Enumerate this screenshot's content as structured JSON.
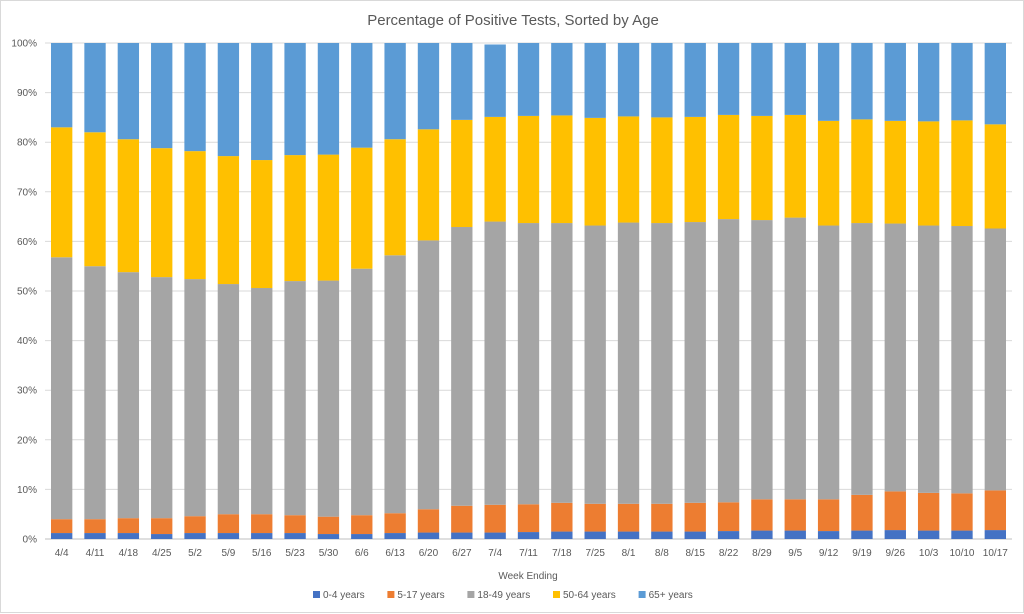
{
  "chart_data": {
    "type": "bar",
    "stacked": true,
    "percent_stacked": true,
    "title": "Percentage of Positive Tests, Sorted by Age",
    "xlabel": "Week Ending",
    "ylabel": "",
    "ylim": [
      0,
      100
    ],
    "y_ticks": [
      "0%",
      "10%",
      "20%",
      "30%",
      "40%",
      "50%",
      "60%",
      "70%",
      "80%",
      "90%",
      "100%"
    ],
    "grid": true,
    "legend_position": "bottom",
    "categories": [
      "4/4",
      "4/11",
      "4/18",
      "4/25",
      "5/2",
      "5/9",
      "5/16",
      "5/23",
      "5/30",
      "6/6",
      "6/13",
      "6/20",
      "6/27",
      "7/4",
      "7/11",
      "7/18",
      "7/25",
      "8/1",
      "8/8",
      "8/15",
      "8/22",
      "8/29",
      "9/5",
      "9/12",
      "9/19",
      "9/26",
      "10/3",
      "10/10",
      "10/17"
    ],
    "series": [
      {
        "name": "0-4 years",
        "color": "#4472c4",
        "values": [
          1.2,
          1.2,
          1.2,
          1.0,
          1.2,
          1.2,
          1.2,
          1.2,
          1.0,
          1.0,
          1.2,
          1.3,
          1.3,
          1.3,
          1.4,
          1.5,
          1.5,
          1.5,
          1.5,
          1.5,
          1.6,
          1.7,
          1.7,
          1.6,
          1.7,
          1.8,
          1.7,
          1.7,
          1.8
        ]
      },
      {
        "name": "5-17 years",
        "color": "#ed7d31",
        "values": [
          2.8,
          2.8,
          3.0,
          3.2,
          3.4,
          3.8,
          3.8,
          3.6,
          3.5,
          3.8,
          4.0,
          4.7,
          5.4,
          5.6,
          5.6,
          5.8,
          5.6,
          5.6,
          5.6,
          5.8,
          5.8,
          6.3,
          6.3,
          6.4,
          7.2,
          7.8,
          7.6,
          7.5,
          8.0
        ]
      },
      {
        "name": "18-49 years",
        "color": "#a5a5a5",
        "values": [
          52.8,
          51.0,
          49.6,
          48.6,
          47.8,
          46.4,
          45.6,
          47.2,
          47.6,
          49.7,
          52.0,
          54.2,
          56.2,
          57.1,
          56.7,
          56.4,
          56.1,
          56.7,
          56.6,
          56.6,
          57.1,
          56.3,
          56.8,
          55.2,
          54.8,
          54.0,
          53.9,
          53.9,
          52.8
        ]
      },
      {
        "name": "50-64 years",
        "color": "#ffc000",
        "values": [
          26.2,
          27.0,
          26.8,
          26.0,
          25.8,
          25.8,
          25.8,
          25.4,
          25.4,
          24.4,
          23.4,
          22.4,
          21.6,
          21.1,
          21.6,
          21.7,
          21.7,
          21.4,
          21.3,
          21.2,
          21.0,
          21.0,
          20.7,
          21.1,
          20.9,
          20.7,
          21.0,
          21.3,
          21.0
        ]
      },
      {
        "name": "65+ years",
        "color": "#5b9bd5",
        "values": [
          17.0,
          18.0,
          19.4,
          21.2,
          21.8,
          22.8,
          23.6,
          22.6,
          22.5,
          21.1,
          19.4,
          17.4,
          15.5,
          14.6,
          14.7,
          14.6,
          15.1,
          14.8,
          15.0,
          14.9,
          14.5,
          14.7,
          14.5,
          15.7,
          15.4,
          15.7,
          15.8,
          15.6,
          16.4
        ]
      }
    ]
  }
}
